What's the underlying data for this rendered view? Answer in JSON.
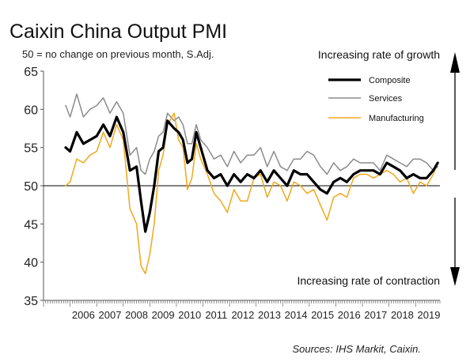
{
  "header": {
    "title": "Caixin China Output PMI",
    "subtitle": "50 = no change on previous month, S.Adj."
  },
  "annotations": {
    "growth": "Increasing rate of growth",
    "contraction": "Increasing rate of contraction"
  },
  "source": "Sources: IHS Markit, Caixin.",
  "colors": {
    "composite": "#000000",
    "services": "#8c8c8c",
    "manufacturing": "#f0a81c",
    "reference_line": "#000000",
    "arrow": "#000000"
  },
  "chart_data": {
    "type": "line",
    "ylim": [
      35,
      65
    ],
    "yticks": [
      35,
      40,
      45,
      50,
      55,
      60,
      65
    ],
    "reference_value": 50,
    "xlim": [
      "2005-01",
      "2019-12"
    ],
    "x_tick_labels": [
      "2006",
      "2007",
      "2008",
      "2009",
      "2010",
      "2011",
      "2012",
      "2013",
      "2014",
      "2015",
      "2016",
      "2017",
      "2018",
      "2019"
    ],
    "grid": false,
    "legend_position": "top-right",
    "legend": [
      "Composite",
      "Services",
      "Manufacturing"
    ],
    "series": [
      {
        "name": "Composite",
        "x": [
          "2005-11",
          "2006-01",
          "2006-04",
          "2006-07",
          "2006-10",
          "2007-01",
          "2007-04",
          "2007-07",
          "2007-10",
          "2008-01",
          "2008-04",
          "2008-07",
          "2008-09",
          "2008-11",
          "2009-01",
          "2009-03",
          "2009-05",
          "2009-07",
          "2009-09",
          "2009-12",
          "2010-02",
          "2010-04",
          "2010-06",
          "2010-08",
          "2010-10",
          "2010-12",
          "2011-03",
          "2011-06",
          "2011-09",
          "2011-12",
          "2012-03",
          "2012-06",
          "2012-09",
          "2012-12",
          "2013-03",
          "2013-06",
          "2013-09",
          "2013-12",
          "2014-03",
          "2014-06",
          "2014-09",
          "2014-12",
          "2015-03",
          "2015-06",
          "2015-09",
          "2015-12",
          "2016-03",
          "2016-06",
          "2016-09",
          "2016-12",
          "2017-03",
          "2017-06",
          "2017-09",
          "2017-12",
          "2018-03",
          "2018-06",
          "2018-09",
          "2018-12",
          "2019-03",
          "2019-06",
          "2019-09",
          "2019-11"
        ],
        "values": [
          55.0,
          54.5,
          57.0,
          55.5,
          56.0,
          56.5,
          58.0,
          56.5,
          59.0,
          57.0,
          52.0,
          52.5,
          48.0,
          44.0,
          46.5,
          50.0,
          54.5,
          55.0,
          58.5,
          57.5,
          57.0,
          56.0,
          53.0,
          53.5,
          57.0,
          55.0,
          52.0,
          51.0,
          51.5,
          50.0,
          51.5,
          50.5,
          51.5,
          51.0,
          52.0,
          50.5,
          52.0,
          51.0,
          50.0,
          52.0,
          51.5,
          51.5,
          50.5,
          49.5,
          49.0,
          50.5,
          51.0,
          50.5,
          51.5,
          52.0,
          52.0,
          52.0,
          51.5,
          53.0,
          52.5,
          52.0,
          51.0,
          51.5,
          51.0,
          51.0,
          52.0,
          53.0
        ]
      },
      {
        "name": "Services",
        "x": [
          "2005-11",
          "2006-01",
          "2006-04",
          "2006-07",
          "2006-10",
          "2007-01",
          "2007-04",
          "2007-07",
          "2007-10",
          "2008-01",
          "2008-04",
          "2008-07",
          "2008-09",
          "2008-11",
          "2009-01",
          "2009-03",
          "2009-05",
          "2009-07",
          "2009-09",
          "2009-12",
          "2010-02",
          "2010-04",
          "2010-06",
          "2010-08",
          "2010-10",
          "2010-12",
          "2011-03",
          "2011-06",
          "2011-09",
          "2011-12",
          "2012-03",
          "2012-06",
          "2012-09",
          "2012-12",
          "2013-03",
          "2013-06",
          "2013-09",
          "2013-12",
          "2014-03",
          "2014-06",
          "2014-09",
          "2014-12",
          "2015-03",
          "2015-06",
          "2015-09",
          "2015-12",
          "2016-03",
          "2016-06",
          "2016-09",
          "2016-12",
          "2017-03",
          "2017-06",
          "2017-09",
          "2017-12",
          "2018-03",
          "2018-06",
          "2018-09",
          "2018-12",
          "2019-03",
          "2019-06",
          "2019-09",
          "2019-11"
        ],
        "values": [
          60.5,
          59.0,
          62.0,
          59.0,
          60.0,
          60.5,
          61.5,
          59.5,
          61.0,
          59.5,
          54.0,
          55.0,
          52.0,
          51.5,
          53.5,
          54.5,
          56.5,
          57.0,
          59.5,
          58.5,
          59.0,
          58.0,
          55.5,
          55.5,
          58.0,
          56.0,
          55.0,
          53.5,
          54.0,
          52.5,
          54.5,
          53.0,
          54.0,
          54.0,
          55.0,
          52.5,
          54.5,
          52.5,
          52.0,
          53.5,
          53.5,
          54.5,
          54.0,
          52.5,
          51.5,
          53.0,
          52.0,
          52.5,
          53.5,
          53.0,
          53.0,
          53.0,
          52.0,
          54.0,
          53.5,
          53.0,
          52.5,
          53.5,
          53.5,
          53.0,
          52.0,
          52.5
        ]
      },
      {
        "name": "Manufacturing",
        "x": [
          "2005-11",
          "2006-01",
          "2006-04",
          "2006-07",
          "2006-10",
          "2007-01",
          "2007-04",
          "2007-07",
          "2007-10",
          "2008-01",
          "2008-04",
          "2008-07",
          "2008-09",
          "2008-11",
          "2009-01",
          "2009-03",
          "2009-05",
          "2009-07",
          "2009-09",
          "2009-12",
          "2010-02",
          "2010-04",
          "2010-06",
          "2010-08",
          "2010-10",
          "2010-12",
          "2011-03",
          "2011-06",
          "2011-09",
          "2011-12",
          "2012-03",
          "2012-06",
          "2012-09",
          "2012-12",
          "2013-03",
          "2013-06",
          "2013-09",
          "2013-12",
          "2014-03",
          "2014-06",
          "2014-09",
          "2014-12",
          "2015-03",
          "2015-06",
          "2015-09",
          "2015-12",
          "2016-03",
          "2016-06",
          "2016-09",
          "2016-12",
          "2017-03",
          "2017-06",
          "2017-09",
          "2017-12",
          "2018-03",
          "2018-06",
          "2018-09",
          "2018-12",
          "2019-03",
          "2019-06",
          "2019-09",
          "2019-11"
        ],
        "values": [
          50.0,
          50.5,
          53.5,
          53.0,
          54.0,
          54.5,
          57.0,
          55.0,
          58.0,
          56.0,
          47.0,
          45.0,
          39.5,
          38.5,
          41.0,
          45.0,
          52.0,
          54.0,
          58.0,
          59.5,
          56.0,
          55.0,
          49.5,
          51.0,
          55.5,
          53.5,
          51.5,
          49.0,
          48.0,
          46.5,
          49.5,
          48.0,
          48.0,
          51.0,
          51.5,
          48.5,
          50.5,
          50.0,
          48.0,
          50.5,
          50.0,
          49.0,
          49.5,
          47.5,
          45.5,
          48.5,
          49.0,
          48.5,
          51.0,
          51.5,
          51.5,
          51.0,
          51.5,
          52.0,
          51.5,
          50.5,
          51.0,
          49.0,
          50.5,
          50.0,
          51.5,
          53.0
        ]
      }
    ]
  }
}
